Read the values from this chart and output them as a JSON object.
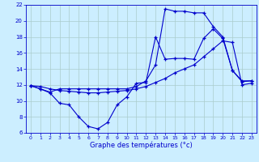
{
  "title": "Graphe des températures (°c)",
  "background_color": "#cceeff",
  "grid_color": "#aacccc",
  "line_color": "#0000cc",
  "xlim": [
    -0.5,
    23.5
  ],
  "ylim": [
    6,
    22
  ],
  "yticks": [
    6,
    8,
    10,
    12,
    14,
    16,
    18,
    20,
    22
  ],
  "xticks": [
    0,
    1,
    2,
    3,
    4,
    5,
    6,
    7,
    8,
    9,
    10,
    11,
    12,
    13,
    14,
    15,
    16,
    17,
    18,
    19,
    20,
    21,
    22,
    23
  ],
  "series1_x": [
    0,
    1,
    2,
    3,
    4,
    5,
    6,
    7,
    8,
    9,
    10,
    11,
    12,
    13,
    14,
    15,
    16,
    17,
    18,
    19,
    20,
    21,
    22,
    23
  ],
  "series1_y": [
    11.9,
    11.5,
    11.0,
    9.7,
    9.5,
    8.0,
    6.8,
    6.5,
    7.3,
    9.5,
    10.5,
    12.2,
    12.3,
    18.0,
    15.2,
    15.3,
    15.3,
    15.2,
    17.8,
    19.0,
    17.8,
    13.8,
    12.5,
    12.5
  ],
  "series2_x": [
    0,
    1,
    2,
    3,
    4,
    5,
    6,
    7,
    8,
    9,
    10,
    11,
    12,
    13,
    14,
    15,
    16,
    17,
    18,
    19,
    20,
    21,
    22,
    23
  ],
  "series2_y": [
    11.9,
    11.5,
    11.1,
    11.5,
    11.5,
    11.5,
    11.5,
    11.5,
    11.5,
    11.5,
    11.5,
    11.8,
    12.5,
    14.5,
    21.5,
    21.2,
    21.2,
    21.0,
    21.0,
    19.3,
    18.0,
    13.8,
    12.4,
    12.5
  ],
  "series3_x": [
    0,
    1,
    2,
    3,
    4,
    5,
    6,
    7,
    8,
    9,
    10,
    11,
    12,
    13,
    14,
    15,
    16,
    17,
    18,
    19,
    20,
    21,
    22,
    23
  ],
  "series3_y": [
    11.9,
    11.8,
    11.5,
    11.3,
    11.2,
    11.1,
    11.0,
    11.0,
    11.1,
    11.2,
    11.3,
    11.5,
    11.8,
    12.3,
    12.8,
    13.5,
    14.0,
    14.5,
    15.5,
    16.5,
    17.5,
    17.3,
    12.0,
    12.2
  ]
}
